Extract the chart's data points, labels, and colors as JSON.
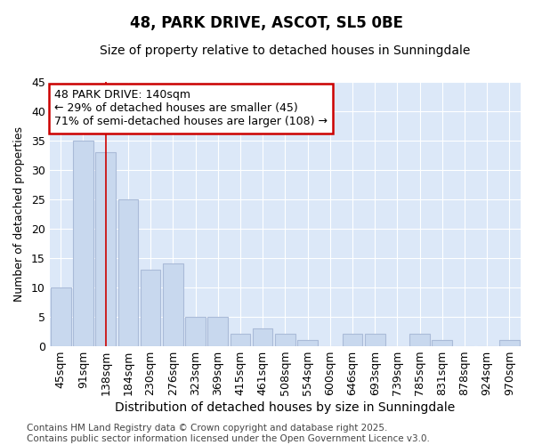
{
  "title1": "48, PARK DRIVE, ASCOT, SL5 0BE",
  "title2": "Size of property relative to detached houses in Sunningdale",
  "xlabel": "Distribution of detached houses by size in Sunningdale",
  "ylabel": "Number of detached properties",
  "categories": [
    "45sqm",
    "91sqm",
    "138sqm",
    "184sqm",
    "230sqm",
    "276sqm",
    "323sqm",
    "369sqm",
    "415sqm",
    "461sqm",
    "508sqm",
    "554sqm",
    "600sqm",
    "646sqm",
    "693sqm",
    "739sqm",
    "785sqm",
    "831sqm",
    "878sqm",
    "924sqm",
    "970sqm"
  ],
  "values": [
    10,
    35,
    33,
    25,
    13,
    14,
    5,
    5,
    2,
    3,
    2,
    1,
    0,
    2,
    2,
    0,
    2,
    1,
    0,
    0,
    1
  ],
  "bar_color": "#c8d8ee",
  "bar_edgecolor": "#aabbd8",
  "vline_x_index": 2,
  "vline_color": "#cc0000",
  "annotation_line1": "48 PARK DRIVE: 140sqm",
  "annotation_line2": "← 29% of detached houses are smaller (45)",
  "annotation_line3": "71% of semi-detached houses are larger (108) →",
  "annotation_box_facecolor": "#ffffff",
  "annotation_box_edgecolor": "#cc0000",
  "ylim": [
    0,
    45
  ],
  "yticks": [
    0,
    5,
    10,
    15,
    20,
    25,
    30,
    35,
    40,
    45
  ],
  "fig_facecolor": "#ffffff",
  "ax_facecolor": "#dce8f8",
  "grid_color": "#ffffff",
  "footer": "Contains HM Land Registry data © Crown copyright and database right 2025.\nContains public sector information licensed under the Open Government Licence v3.0.",
  "title1_fontsize": 12,
  "title2_fontsize": 10,
  "xlabel_fontsize": 10,
  "ylabel_fontsize": 9,
  "tick_fontsize": 9,
  "annotation_fontsize": 9,
  "footer_fontsize": 7.5
}
